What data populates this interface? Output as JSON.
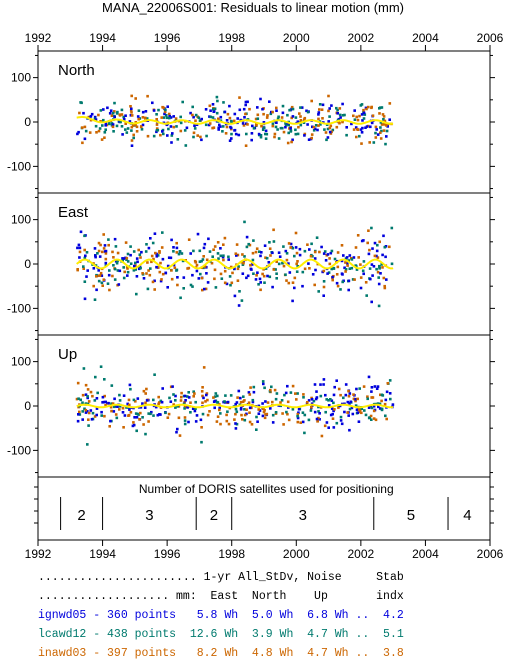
{
  "title": "MANA_22006S001: Residuals to linear motion (mm)",
  "chart_data": {
    "type": "scatter",
    "x_range": [
      1992,
      2006
    ],
    "x_ticks": [
      1992,
      1994,
      1996,
      1998,
      2000,
      2002,
      2004,
      2006
    ],
    "y_range": [
      -160,
      160
    ],
    "y_ticks": [
      -100,
      0,
      100
    ],
    "data_span": [
      1993.2,
      2003.0
    ],
    "series_colors": [
      "#0000dd",
      "#007a6e",
      "#cc6600"
    ],
    "trend_color": "#ffee00",
    "panels": [
      {
        "name": "North",
        "scatter_sd": 22,
        "trend_amplitude": 4
      },
      {
        "name": "East",
        "scatter_sd": 34,
        "trend_amplitude": 10
      },
      {
        "name": "Up",
        "scatter_sd": 26,
        "trend_amplitude": 3
      }
    ],
    "satellites": {
      "title": "Number of DORIS satellites used for positioning",
      "boundaries": [
        1992.7,
        1994.0,
        1996.9,
        1998.0,
        2002.4,
        2004.7
      ],
      "segments": [
        {
          "value": "2",
          "x": 1993.35
        },
        {
          "value": "3",
          "x": 1995.45
        },
        {
          "value": "2",
          "x": 1997.45
        },
        {
          "value": "3",
          "x": 2000.2
        },
        {
          "value": "5",
          "x": 2003.55
        },
        {
          "value": "4",
          "x": 2005.3
        }
      ]
    }
  },
  "stats": {
    "header1": "....................... 1-yr All_StDv, Noise     Stab",
    "header2": "................... mm:  East  North    Up       indx",
    "rows": [
      {
        "text": "ignwd05 - 360 points   5.8 Wh  5.0 Wh  6.8 Wh ..  4.2",
        "color": "#0000dd"
      },
      {
        "text": "lcawd12 - 438 points  12.6 Wh  3.9 Wh  4.7 Wh ..  5.1",
        "color": "#007a6e"
      },
      {
        "text": "inawd03 - 397 points   8.2 Wh  4.8 Wh  4.7 Wh ..  3.8",
        "color": "#cc6600"
      }
    ]
  }
}
